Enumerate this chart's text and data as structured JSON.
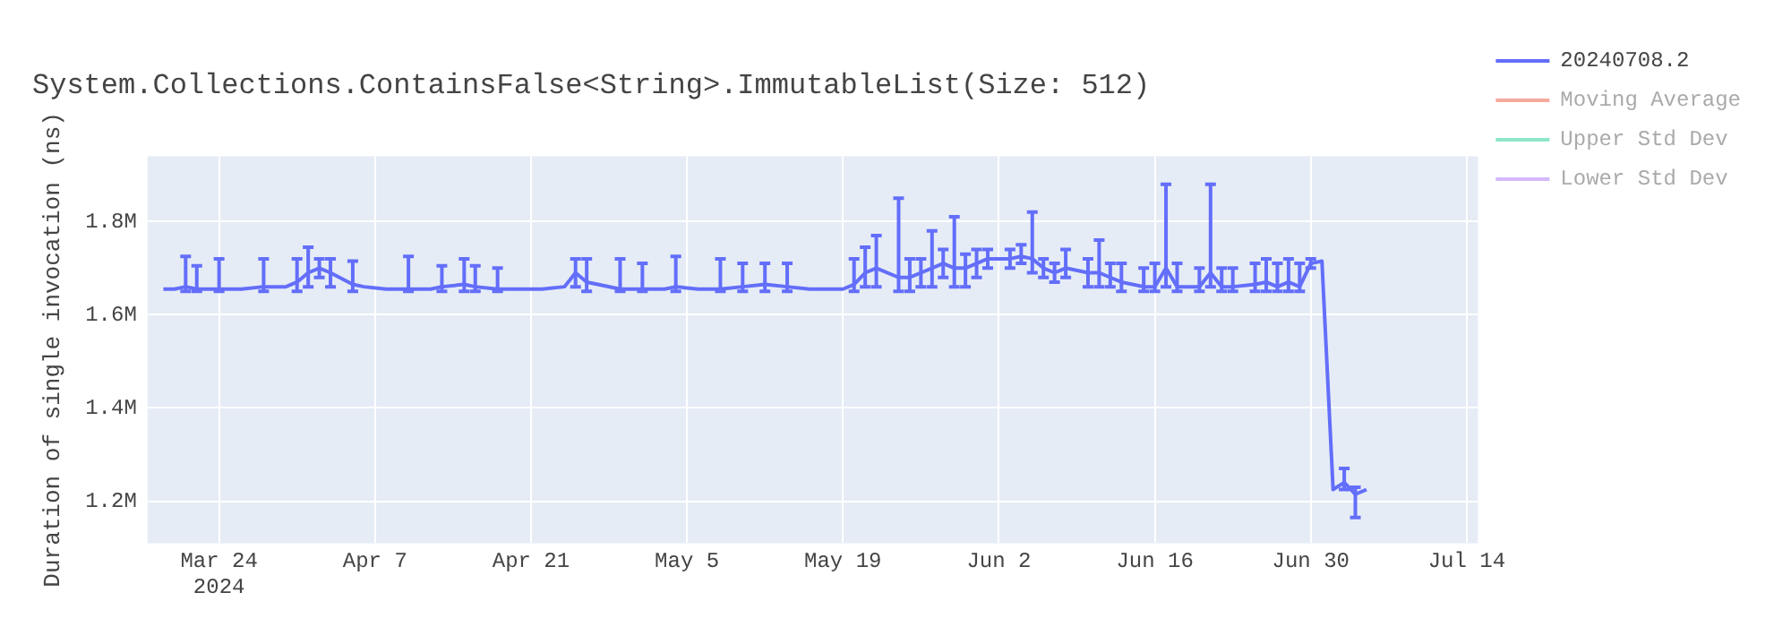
{
  "chart_data": {
    "type": "line",
    "title": "System.Collections.ContainsFalse<String>.ImmutableList(Size: 512)",
    "ylabel": "Duration of single invocation (ns)",
    "x": [
      "2024-03-19",
      "2024-03-20",
      "2024-03-21",
      "2024-03-22",
      "2024-03-24",
      "2024-03-26",
      "2024-03-28",
      "2024-03-30",
      "2024-03-31",
      "2024-04-01",
      "2024-04-02",
      "2024-04-03",
      "2024-04-05",
      "2024-04-06",
      "2024-04-08",
      "2024-04-10",
      "2024-04-12",
      "2024-04-13",
      "2024-04-15",
      "2024-04-16",
      "2024-04-18",
      "2024-04-20",
      "2024-04-22",
      "2024-04-24",
      "2024-04-25",
      "2024-04-26",
      "2024-04-27",
      "2024-04-29",
      "2024-05-01",
      "2024-05-03",
      "2024-05-04",
      "2024-05-06",
      "2024-05-08",
      "2024-05-10",
      "2024-05-12",
      "2024-05-14",
      "2024-05-16",
      "2024-05-19",
      "2024-05-20",
      "2024-05-21",
      "2024-05-22",
      "2024-05-24",
      "2024-05-25",
      "2024-05-26",
      "2024-05-27",
      "2024-05-28",
      "2024-05-29",
      "2024-05-30",
      "2024-05-31",
      "2024-06-01",
      "2024-06-03",
      "2024-06-04",
      "2024-06-05",
      "2024-06-06",
      "2024-06-07",
      "2024-06-08",
      "2024-06-10",
      "2024-06-11",
      "2024-06-12",
      "2024-06-13",
      "2024-06-15",
      "2024-06-16",
      "2024-06-17",
      "2024-06-18",
      "2024-06-20",
      "2024-06-21",
      "2024-06-22",
      "2024-06-23",
      "2024-06-25",
      "2024-06-26",
      "2024-06-27",
      "2024-06-28",
      "2024-06-29",
      "2024-06-30",
      "2024-07-01",
      "2024-07-02",
      "2024-07-03",
      "2024-07-04",
      "2024-07-05"
    ],
    "series": [
      {
        "name": "20240708.2",
        "color": "#636efa",
        "values": [
          1655000,
          1655000,
          1660000,
          1655000,
          1655000,
          1655000,
          1660000,
          1660000,
          1670000,
          1690000,
          1700000,
          1690000,
          1665000,
          1660000,
          1655000,
          1655000,
          1655000,
          1660000,
          1665000,
          1660000,
          1655000,
          1655000,
          1655000,
          1660000,
          1690000,
          1670000,
          1665000,
          1655000,
          1655000,
          1655000,
          1660000,
          1655000,
          1655000,
          1660000,
          1665000,
          1660000,
          1655000,
          1655000,
          1665000,
          1690000,
          1700000,
          1680000,
          1680000,
          1690000,
          1700000,
          1710000,
          1700000,
          1700000,
          1710000,
          1720000,
          1720000,
          1725000,
          1720000,
          1700000,
          1690000,
          1700000,
          1690000,
          1690000,
          1680000,
          1670000,
          1660000,
          1660000,
          1700000,
          1660000,
          1660000,
          1690000,
          1660000,
          1660000,
          1665000,
          1670000,
          1660000,
          1670000,
          1660000,
          1710000,
          1715000,
          1225000,
          1240000,
          1215000,
          1225000
        ],
        "errors": [
          null,
          null,
          [
            1650000,
            1725000
          ],
          [
            1650000,
            1705000
          ],
          [
            1650000,
            1720000
          ],
          null,
          [
            1650000,
            1720000
          ],
          null,
          [
            1650000,
            1720000
          ],
          [
            1660000,
            1745000
          ],
          [
            1680000,
            1720000
          ],
          [
            1660000,
            1720000
          ],
          [
            1650000,
            1715000
          ],
          null,
          null,
          [
            1650000,
            1725000
          ],
          null,
          [
            1650000,
            1705000
          ],
          [
            1650000,
            1720000
          ],
          [
            1650000,
            1705000
          ],
          [
            1650000,
            1700000
          ],
          null,
          null,
          null,
          [
            1660000,
            1720000
          ],
          [
            1650000,
            1720000
          ],
          null,
          [
            1650000,
            1720000
          ],
          [
            1650000,
            1710000
          ],
          null,
          [
            1650000,
            1725000
          ],
          null,
          [
            1650000,
            1720000
          ],
          [
            1650000,
            1710000
          ],
          [
            1650000,
            1710000
          ],
          [
            1650000,
            1710000
          ],
          null,
          null,
          [
            1650000,
            1720000
          ],
          [
            1660000,
            1745000
          ],
          [
            1660000,
            1770000
          ],
          [
            1650000,
            1850000
          ],
          [
            1650000,
            1720000
          ],
          [
            1660000,
            1720000
          ],
          [
            1660000,
            1780000
          ],
          [
            1680000,
            1740000
          ],
          [
            1660000,
            1810000
          ],
          [
            1660000,
            1730000
          ],
          [
            1680000,
            1740000
          ],
          [
            1700000,
            1740000
          ],
          [
            1700000,
            1740000
          ],
          [
            1710000,
            1750000
          ],
          [
            1690000,
            1820000
          ],
          [
            1680000,
            1720000
          ],
          [
            1670000,
            1710000
          ],
          [
            1680000,
            1740000
          ],
          [
            1660000,
            1720000
          ],
          [
            1660000,
            1760000
          ],
          [
            1660000,
            1710000
          ],
          [
            1650000,
            1710000
          ],
          [
            1650000,
            1700000
          ],
          [
            1650000,
            1710000
          ],
          [
            1660000,
            1880000
          ],
          [
            1650000,
            1710000
          ],
          [
            1650000,
            1700000
          ],
          [
            1660000,
            1880000
          ],
          [
            1650000,
            1700000
          ],
          [
            1650000,
            1700000
          ],
          [
            1650000,
            1710000
          ],
          [
            1650000,
            1720000
          ],
          [
            1650000,
            1710000
          ],
          [
            1650000,
            1720000
          ],
          [
            1650000,
            1710000
          ],
          [
            1700000,
            1720000
          ],
          null,
          null,
          [
            1225000,
            1270000
          ],
          [
            1165000,
            1230000
          ],
          null
        ]
      },
      {
        "name": "Moving Average",
        "color": "#f5aa9c",
        "values": [
          null,
          null,
          null,
          null,
          null,
          null,
          null,
          null,
          null,
          null,
          null,
          null,
          null,
          null,
          null,
          null,
          null,
          null,
          null,
          null,
          null,
          null,
          null,
          null,
          null,
          null,
          null,
          null,
          null,
          null,
          null,
          null,
          null,
          null,
          null,
          null,
          null,
          null,
          null,
          null,
          null,
          null,
          null,
          null,
          null,
          null,
          null,
          null,
          null,
          null,
          null,
          null,
          null,
          null,
          null,
          null,
          null,
          null,
          null,
          null,
          null,
          null,
          null,
          null,
          null,
          null,
          null,
          null,
          null,
          null,
          null,
          null,
          null,
          null,
          null,
          null,
          null,
          null,
          null
        ]
      },
      {
        "name": "Upper Std Dev",
        "color": "#8ee6c6",
        "values": [
          null,
          null,
          null,
          null,
          null,
          null,
          null,
          null,
          null,
          null,
          null,
          null,
          null,
          null,
          null,
          null,
          null,
          null,
          null,
          null,
          null,
          null,
          null,
          null,
          null,
          null,
          null,
          null,
          null,
          null,
          null,
          null,
          null,
          null,
          null,
          null,
          null,
          null,
          null,
          null,
          null,
          null,
          null,
          null,
          null,
          null,
          null,
          null,
          null,
          null,
          null,
          null,
          null,
          null,
          null,
          null,
          null,
          null,
          null,
          null,
          null,
          null,
          null,
          null,
          null,
          null,
          null,
          null,
          null,
          null,
          null,
          null,
          null,
          null,
          null,
          null,
          null,
          null,
          null
        ]
      },
      {
        "name": "Lower Std Dev",
        "color": "#d4b8fb",
        "values": [
          null,
          null,
          null,
          null,
          null,
          null,
          null,
          null,
          null,
          null,
          null,
          null,
          null,
          null,
          null,
          null,
          null,
          null,
          null,
          null,
          null,
          null,
          null,
          null,
          null,
          null,
          null,
          null,
          null,
          null,
          null,
          null,
          null,
          null,
          null,
          null,
          null,
          null,
          null,
          null,
          null,
          null,
          null,
          null,
          null,
          null,
          null,
          null,
          null,
          null,
          null,
          null,
          null,
          null,
          null,
          null,
          null,
          null,
          null,
          null,
          null,
          null,
          null,
          null,
          null,
          null,
          null,
          null,
          null,
          null,
          null,
          null,
          null,
          null,
          null,
          null,
          null,
          null,
          null
        ]
      }
    ],
    "xlim": [
      "2024-03-17T14:00",
      "2024-07-15"
    ],
    "xticks": [
      {
        "value": "2024-03-24",
        "label": "Mar 24\n2024"
      },
      {
        "value": "2024-04-07",
        "label": "Apr 7"
      },
      {
        "value": "2024-04-21",
        "label": "Apr 21"
      },
      {
        "value": "2024-05-05",
        "label": "May 5"
      },
      {
        "value": "2024-05-19",
        "label": "May 19"
      },
      {
        "value": "2024-06-02",
        "label": "Jun 2"
      },
      {
        "value": "2024-06-16",
        "label": "Jun 16"
      },
      {
        "value": "2024-06-30",
        "label": "Jun 30"
      },
      {
        "value": "2024-07-14",
        "label": "Jul 14"
      }
    ],
    "ylim": [
      1110000,
      1940000
    ],
    "yticks": [
      {
        "value": 1200000,
        "label": "1.2M"
      },
      {
        "value": 1400000,
        "label": "1.4M"
      },
      {
        "value": 1600000,
        "label": "1.6M"
      },
      {
        "value": 1800000,
        "label": "1.8M"
      }
    ],
    "grid": true,
    "legend": "top right",
    "marker": "none",
    "line_style": "solid"
  }
}
